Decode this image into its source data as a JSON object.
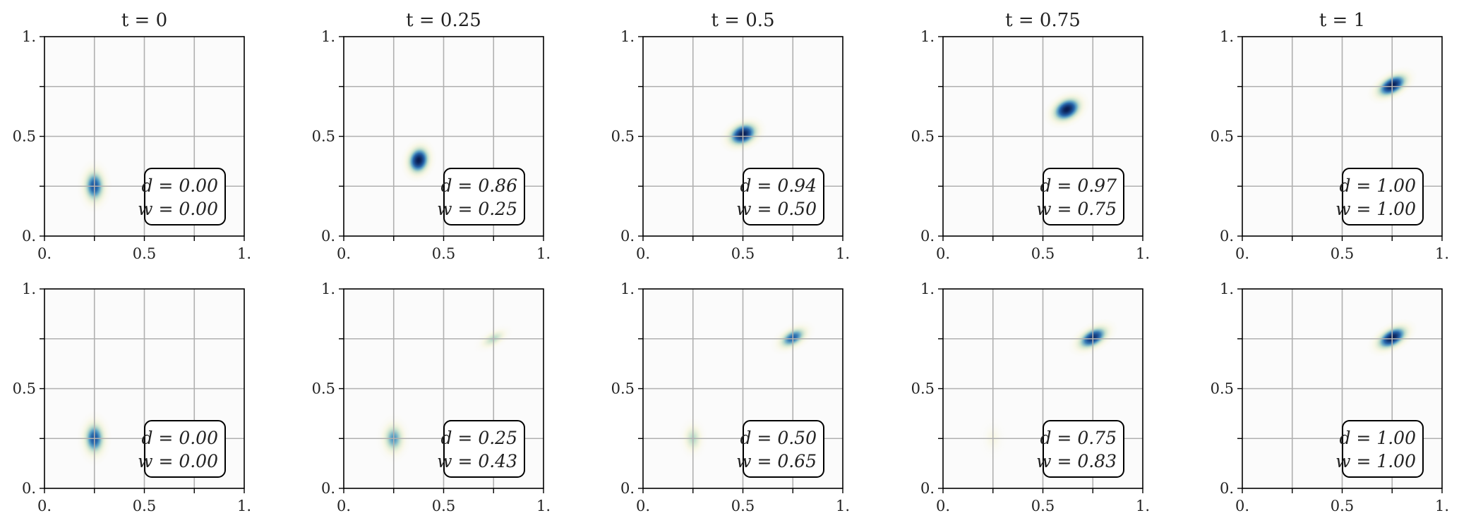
{
  "colors": {
    "grid": "#b0b0b0",
    "axes": "#000000",
    "density_low": "#f4f0c0",
    "density_mid": "#2f7db5",
    "density_high": "#0a1a4e",
    "background": "#fbfbfb"
  },
  "chart_data": {
    "type": "heatmap",
    "layout": "2 rows x 5 columns",
    "columns_titles": [
      "t = 0",
      "t = 0.25",
      "t = 0.5",
      "t = 0.75",
      "t = 1"
    ],
    "x_ticks": [
      "0.",
      "0.5",
      "1."
    ],
    "y_ticks": [
      "0.",
      "0.5",
      "1."
    ],
    "xlim": [
      0,
      1
    ],
    "ylim": [
      0,
      1
    ],
    "grid": true,
    "rows": [
      {
        "panels": [
          {
            "t": 0,
            "d_label": "d = 0.00",
            "w_label": "w = 0.00",
            "blobs": [
              {
                "cx": 0.25,
                "cy": 0.25,
                "sx": 0.035,
                "sy": 0.055,
                "angle": 0,
                "amp": 0.75
              }
            ]
          },
          {
            "t": 0.25,
            "d_label": "d = 0.86",
            "w_label": "w = 0.25",
            "blobs": [
              {
                "cx": 0.375,
                "cy": 0.38,
                "sx": 0.035,
                "sy": 0.045,
                "angle": 15,
                "amp": 1.0
              }
            ]
          },
          {
            "t": 0.5,
            "d_label": "d = 0.94",
            "w_label": "w = 0.50",
            "blobs": [
              {
                "cx": 0.5,
                "cy": 0.51,
                "sx": 0.05,
                "sy": 0.035,
                "angle": -25,
                "amp": 1.0
              }
            ]
          },
          {
            "t": 0.75,
            "d_label": "d = 0.97",
            "w_label": "w = 0.75",
            "blobs": [
              {
                "cx": 0.62,
                "cy": 0.635,
                "sx": 0.05,
                "sy": 0.035,
                "angle": -30,
                "amp": 1.0
              }
            ]
          },
          {
            "t": 1,
            "d_label": "d = 1.00",
            "w_label": "w = 1.00",
            "blobs": [
              {
                "cx": 0.75,
                "cy": 0.755,
                "sx": 0.055,
                "sy": 0.03,
                "angle": -30,
                "amp": 1.0
              }
            ]
          }
        ]
      },
      {
        "panels": [
          {
            "t": 0,
            "d_label": "d = 0.00",
            "w_label": "w = 0.00",
            "blobs": [
              {
                "cx": 0.25,
                "cy": 0.25,
                "sx": 0.035,
                "sy": 0.055,
                "angle": 0,
                "amp": 0.75
              }
            ]
          },
          {
            "t": 0.25,
            "d_label": "d = 0.25",
            "w_label": "w = 0.43",
            "blobs": [
              {
                "cx": 0.25,
                "cy": 0.25,
                "sx": 0.035,
                "sy": 0.05,
                "angle": 0,
                "amp": 0.55
              },
              {
                "cx": 0.75,
                "cy": 0.75,
                "sx": 0.045,
                "sy": 0.022,
                "angle": -30,
                "amp": 0.35
              }
            ]
          },
          {
            "t": 0.5,
            "d_label": "d = 0.50",
            "w_label": "w = 0.65",
            "blobs": [
              {
                "cx": 0.25,
                "cy": 0.25,
                "sx": 0.03,
                "sy": 0.045,
                "angle": 0,
                "amp": 0.35
              },
              {
                "cx": 0.75,
                "cy": 0.755,
                "sx": 0.05,
                "sy": 0.028,
                "angle": -30,
                "amp": 0.7
              }
            ]
          },
          {
            "t": 0.75,
            "d_label": "d = 0.75",
            "w_label": "w = 0.83",
            "blobs": [
              {
                "cx": 0.25,
                "cy": 0.25,
                "sx": 0.03,
                "sy": 0.045,
                "angle": 0,
                "amp": 0.12
              },
              {
                "cx": 0.75,
                "cy": 0.755,
                "sx": 0.055,
                "sy": 0.03,
                "angle": -30,
                "amp": 0.9
              }
            ]
          },
          {
            "t": 1,
            "d_label": "d = 1.00",
            "w_label": "w = 1.00",
            "blobs": [
              {
                "cx": 0.75,
                "cy": 0.755,
                "sx": 0.055,
                "sy": 0.03,
                "angle": -30,
                "amp": 1.0
              }
            ]
          }
        ]
      }
    ]
  }
}
